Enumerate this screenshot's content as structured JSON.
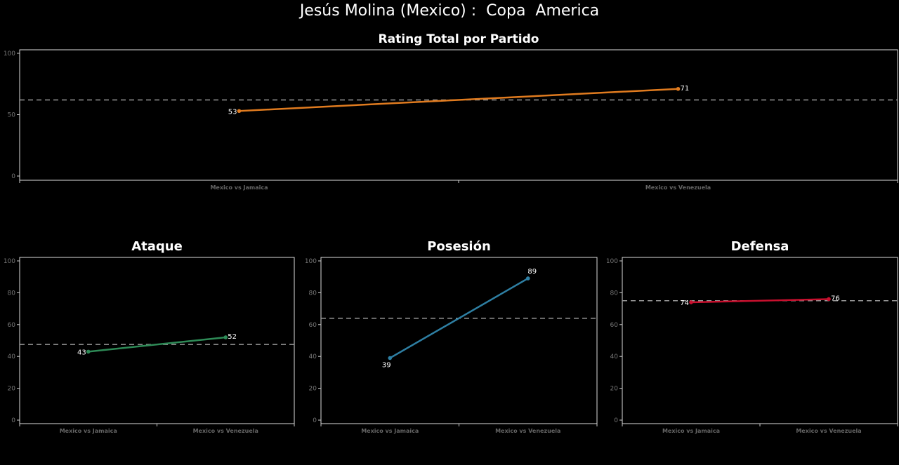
{
  "title": "Jesús Molina (Mexico) :  Copa  America",
  "chart_data": [
    {
      "type": "line",
      "title": "Rating Total por Partido",
      "categories": [
        "Mexico vs Jamaica",
        "Mexico vs Venezuela"
      ],
      "values": [
        53,
        71
      ],
      "average": 62,
      "ylim": [
        0,
        100
      ],
      "yticks": [
        0,
        50,
        100
      ],
      "color": "#e07b1f",
      "grid": false
    },
    {
      "type": "line",
      "title": "Ataque",
      "categories": [
        "Mexico vs Jamaica",
        "Mexico vs Venezuela"
      ],
      "values": [
        43,
        52
      ],
      "average": 47.5,
      "ylim": [
        0,
        100
      ],
      "yticks": [
        0,
        20,
        40,
        60,
        80,
        100
      ],
      "color": "#2e8b57",
      "grid": false
    },
    {
      "type": "line",
      "title": "Posesión",
      "categories": [
        "Mexico vs Jamaica",
        "Mexico vs Venezuela"
      ],
      "values": [
        39,
        89
      ],
      "average": 64,
      "ylim": [
        0,
        100
      ],
      "yticks": [
        0,
        20,
        40,
        60,
        80,
        100
      ],
      "color": "#2e7fa3",
      "grid": false
    },
    {
      "type": "line",
      "title": "Defensa",
      "categories": [
        "Mexico vs Jamaica",
        "Mexico vs Venezuela"
      ],
      "values": [
        74,
        76
      ],
      "average": 75,
      "ylim": [
        0,
        100
      ],
      "yticks": [
        0,
        20,
        40,
        60,
        80,
        100
      ],
      "color": "#c8102e",
      "grid": false
    }
  ]
}
